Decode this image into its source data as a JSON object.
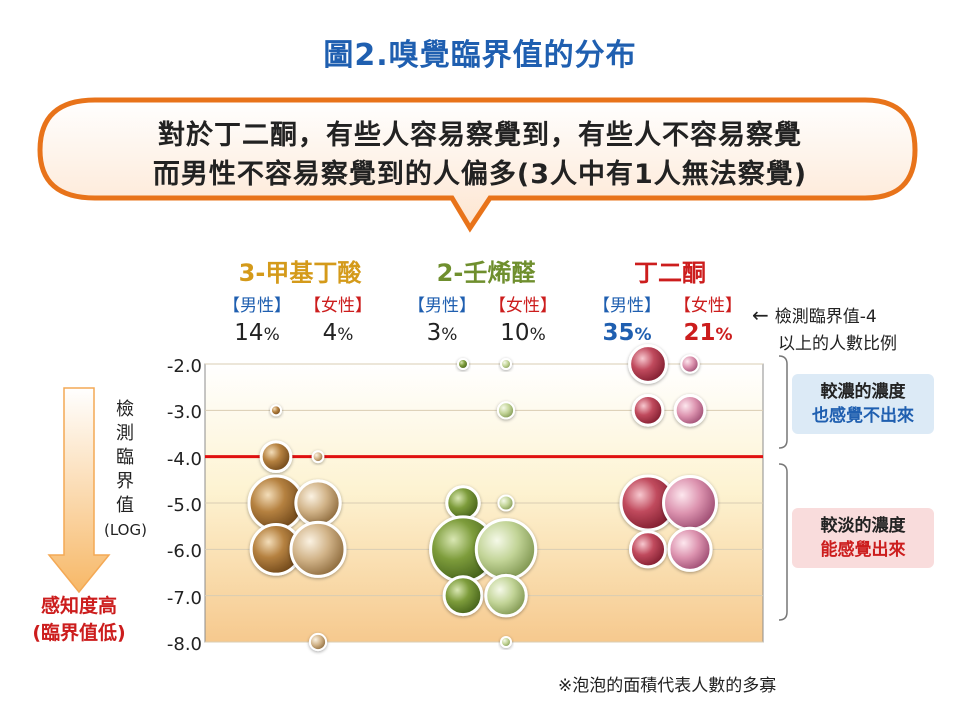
{
  "title": "圖2.嗅覺臨界值的分布",
  "callout": {
    "line1": "對於丁二酮，有些人容易察覺到，有些人不容易察覺",
    "line2": "而男性不容易察覺到的人偏多(3人中有1人無法察覺)"
  },
  "y_axis_label": [
    "檢",
    "測",
    "臨",
    "界",
    "值",
    "(LOG)"
  ],
  "y_ticks": [
    "-2.0",
    "-3.0",
    "-4.0",
    "-5.0",
    "-6.0",
    "-7.0",
    "-8.0"
  ],
  "side_note": {
    "line1": "檢測臨界值-4",
    "line2": "以上的人數比例",
    "arrow": "←"
  },
  "box_top": {
    "line1": "較濃的濃度",
    "line2": "也感覺不出來"
  },
  "box_bottom": {
    "line1": "較淡的濃度",
    "line2": "能感覺出來"
  },
  "arrow_text": {
    "line1": "感知度高",
    "line2": "(臨界值低)"
  },
  "footnote": "※泡泡的面積代表人數的多寡",
  "gender_labels": {
    "male": "【男性】",
    "female": "【女性】"
  },
  "colors": {
    "compound1": "#d49a1a",
    "compound2": "#6f8f2e",
    "compound3": "#cc1d1d",
    "threshold_line": "#e01010",
    "title": "#1f5fb0",
    "callout_border": "#e8731a"
  },
  "chart_data": {
    "type": "scatter",
    "title": "圖2.嗅覺臨界值的分布",
    "ylabel": "檢測臨界值 (LOG)",
    "ylim": [
      -8.0,
      -2.0
    ],
    "threshold": -4.0,
    "compounds": [
      {
        "name": "3-甲基丁酸",
        "male_pct": "14",
        "female_pct": "4",
        "pct_unit": "%",
        "male": [
          {
            "y": -3.0,
            "r": 0.15
          },
          {
            "y": -4.0,
            "r": 0.55
          },
          {
            "y": -5.0,
            "r": 1.0
          },
          {
            "y": -6.0,
            "r": 0.92
          }
        ],
        "female": [
          {
            "y": -4.0,
            "r": 0.2
          },
          {
            "y": -5.0,
            "r": 0.82
          },
          {
            "y": -6.0,
            "r": 1.0
          },
          {
            "y": -8.0,
            "r": 0.3
          }
        ]
      },
      {
        "name": "2-壬烯醛",
        "male_pct": "3",
        "female_pct": "10",
        "pct_unit": "%",
        "male": [
          {
            "y": -2.0,
            "r": 0.18
          },
          {
            "y": -5.0,
            "r": 0.6
          },
          {
            "y": -6.0,
            "r": 1.2
          },
          {
            "y": -7.0,
            "r": 0.7
          }
        ],
        "female": [
          {
            "y": -2.0,
            "r": 0.18
          },
          {
            "y": -3.0,
            "r": 0.3
          },
          {
            "y": -5.0,
            "r": 0.28
          },
          {
            "y": -6.0,
            "r": 1.1
          },
          {
            "y": -7.0,
            "r": 0.75
          },
          {
            "y": -8.0,
            "r": 0.18
          }
        ]
      },
      {
        "name": "丁二酮",
        "male_pct": "35",
        "female_pct": "21",
        "pct_unit": "%",
        "male": [
          {
            "y": -2.0,
            "r": 0.68
          },
          {
            "y": -3.0,
            "r": 0.55
          },
          {
            "y": -5.0,
            "r": 1.0
          },
          {
            "y": -6.0,
            "r": 0.65
          }
        ],
        "female": [
          {
            "y": -2.0,
            "r": 0.32
          },
          {
            "y": -3.0,
            "r": 0.55
          },
          {
            "y": -5.0,
            "r": 0.98
          },
          {
            "y": -6.0,
            "r": 0.78
          }
        ]
      }
    ]
  }
}
